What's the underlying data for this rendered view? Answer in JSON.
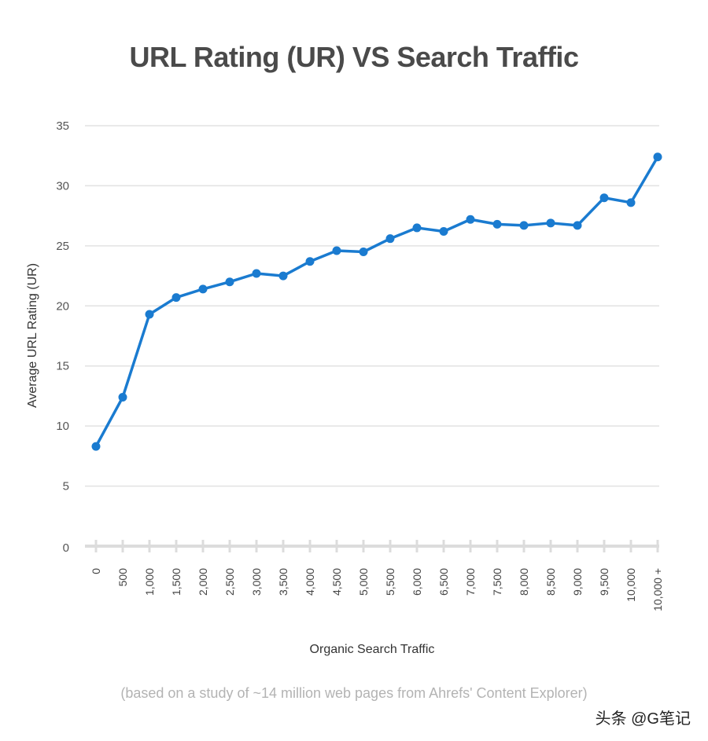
{
  "chart_data": {
    "type": "line",
    "title": "URL Rating (UR) VS Search Traffic",
    "xlabel": "Organic Search Traffic",
    "ylabel": "Average URL Rating (UR)",
    "categories": [
      "0",
      "500",
      "1,000",
      "1,500",
      "2,000",
      "2,500",
      "3,000",
      "3,500",
      "4,000",
      "4,500",
      "5,000",
      "5,500",
      "6,000",
      "6,500",
      "7,000",
      "7,500",
      "8,000",
      "8,500",
      "9,000",
      "9,500",
      "10,000",
      "10,000 +"
    ],
    "series": [
      {
        "name": "Average URL Rating (UR)",
        "values": [
          8.3,
          12.4,
          19.3,
          20.7,
          21.4,
          22.0,
          22.7,
          22.5,
          23.7,
          24.6,
          24.5,
          25.6,
          26.5,
          26.2,
          27.2,
          26.8,
          26.7,
          26.9,
          26.7,
          29.0,
          28.6,
          32.4
        ]
      }
    ],
    "ylim": [
      0,
      35
    ],
    "yticks": [
      0,
      5,
      10,
      15,
      20,
      25,
      30,
      35
    ],
    "grid": true,
    "line_color": "#1a7bd0",
    "footnote": "(based on a study of ~14 million web pages from Ahrefs' Content Explorer)"
  },
  "watermark": "头条 @G笔记"
}
